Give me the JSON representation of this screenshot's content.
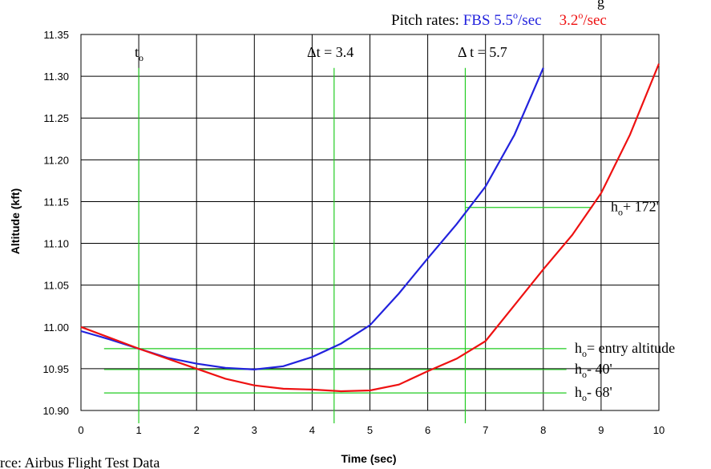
{
  "header": {
    "title_fragment": "g",
    "pitch_rates_label": "Pitch rates: ",
    "fbs_rate": "FBS 5.5",
    "fbs_unit": "/sec",
    "second_rate": "3.2",
    "second_unit": "/sec",
    "degree_mark": "o"
  },
  "source_note": "rce: Airbus Flight Test Data",
  "colors": {
    "fbs": "#2222dd",
    "other": "#ee1111",
    "reference": "#22cc22",
    "grid": "#000000"
  },
  "chart_data": {
    "type": "line",
    "xlabel": "Time (sec)",
    "ylabel": "Altitude (kft)",
    "xlim": [
      0,
      10
    ],
    "ylim": [
      10.9,
      11.35
    ],
    "x_ticks": [
      "0",
      "1",
      "2",
      "3",
      "4",
      "5",
      "6",
      "7",
      "8",
      "9",
      "10"
    ],
    "y_ticks": [
      "10.90",
      "10.95",
      "11.00",
      "11.05",
      "11.10",
      "11.15",
      "11.20",
      "11.25",
      "11.30",
      "11.35"
    ],
    "grid": true,
    "series": [
      {
        "key": "fbs",
        "points": [
          [
            0,
            10.995
          ],
          [
            0.5,
            10.985
          ],
          [
            1,
            10.974
          ],
          [
            1.5,
            10.963
          ],
          [
            2,
            10.956
          ],
          [
            2.5,
            10.951
          ],
          [
            3,
            10.949
          ],
          [
            3.5,
            10.953
          ],
          [
            4,
            10.964
          ],
          [
            4.5,
            10.98
          ],
          [
            5,
            11.002
          ],
          [
            5.5,
            11.04
          ],
          [
            6,
            11.082
          ],
          [
            6.5,
            11.123
          ],
          [
            7,
            11.168
          ],
          [
            7.5,
            11.23
          ],
          [
            8,
            11.31
          ]
        ]
      },
      {
        "key": "other",
        "points": [
          [
            0,
            11.0
          ],
          [
            0.5,
            10.987
          ],
          [
            1,
            10.974
          ],
          [
            1.5,
            10.962
          ],
          [
            2,
            10.95
          ],
          [
            2.5,
            10.938
          ],
          [
            3,
            10.93
          ],
          [
            3.5,
            10.926
          ],
          [
            4,
            10.925
          ],
          [
            4.5,
            10.923
          ],
          [
            5,
            10.924
          ],
          [
            5.5,
            10.931
          ],
          [
            6,
            10.947
          ],
          [
            6.5,
            10.962
          ],
          [
            7,
            10.983
          ],
          [
            7.5,
            11.026
          ],
          [
            8,
            11.069
          ],
          [
            8.5,
            11.11
          ],
          [
            9,
            11.16
          ],
          [
            9.5,
            11.23
          ],
          [
            10,
            11.315
          ]
        ]
      }
    ],
    "vertical_markers": [
      {
        "x": 1.0,
        "label": "t",
        "sub": "o",
        "rest": ""
      },
      {
        "x": 4.38,
        "label": "Δt = 3.4",
        "sub": "",
        "rest": ""
      },
      {
        "x": 6.65,
        "label": "Δ t = 5.7",
        "sub": "",
        "rest": ""
      }
    ],
    "horizontal_markers": [
      {
        "y": 11.143,
        "x_from": 6.65,
        "x_to": 8.85,
        "label": "h",
        "sub": "o",
        "rest": "+ 172'"
      },
      {
        "y": 10.974,
        "x_from": 0.4,
        "x_to": 8.4,
        "label": "h",
        "sub": "o",
        "rest": "= entry altitude"
      },
      {
        "y": 10.949,
        "x_from": 0.4,
        "x_to": 8.4,
        "label": "h",
        "sub": "o",
        "rest": "- 40'"
      },
      {
        "y": 10.921,
        "x_from": 0.4,
        "x_to": 8.4,
        "label": "h",
        "sub": "o",
        "rest": "- 68'"
      }
    ]
  }
}
